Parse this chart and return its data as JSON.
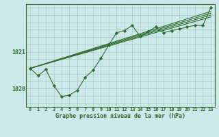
{
  "xlabel": "Graphe pression niveau de la mer (hPa)",
  "bg_color": "#cce8e8",
  "grid_color": "#b0d0d0",
  "line_color": "#2d6e2d",
  "marker_color": "#2d6e2d",
  "ylim": [
    1019.5,
    1022.3
  ],
  "xlim": [
    -0.5,
    23.5
  ],
  "yticks": [
    1020,
    1021
  ],
  "ytick_labels": [
    "1020",
    "1021"
  ],
  "xticks": [
    0,
    1,
    2,
    3,
    4,
    5,
    6,
    7,
    8,
    9,
    10,
    11,
    12,
    13,
    14,
    15,
    16,
    17,
    18,
    19,
    20,
    21,
    22,
    23
  ],
  "linear_series": [
    {
      "x0": 0,
      "y0": 1020.55,
      "x1": 23,
      "y1": 1022.0
    },
    {
      "x0": 0,
      "y0": 1020.55,
      "x1": 23,
      "y1": 1022.05
    },
    {
      "x0": 0,
      "y0": 1020.55,
      "x1": 23,
      "y1": 1021.95
    },
    {
      "x0": 0,
      "y0": 1020.55,
      "x1": 23,
      "y1": 1022.1
    }
  ],
  "main_series_x": [
    0,
    1,
    2,
    3,
    4,
    5,
    6,
    7,
    8,
    9,
    10,
    11,
    12,
    13,
    14,
    15,
    16,
    17,
    18,
    19,
    20,
    21,
    22,
    23
  ],
  "main_series_y": [
    1020.55,
    1020.35,
    1020.52,
    1020.08,
    1019.78,
    1019.82,
    1019.95,
    1020.3,
    1020.5,
    1020.82,
    1021.18,
    1021.52,
    1021.58,
    1021.72,
    1021.42,
    1021.55,
    1021.68,
    1021.52,
    1021.58,
    1021.62,
    1021.68,
    1021.72,
    1021.72,
    1022.2
  ]
}
